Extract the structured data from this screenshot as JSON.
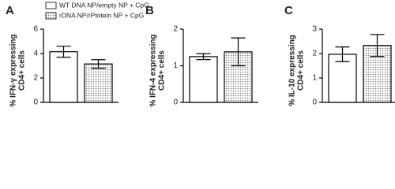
{
  "chart_data": [
    {
      "type": "bar",
      "panel": "A",
      "ylabel": [
        "% IFN-γ expressing",
        "CD4+ cells"
      ],
      "ylim": [
        0,
        6
      ],
      "yticks": [
        0,
        2,
        4,
        6
      ],
      "series": [
        {
          "name": "WT DNA NP/empty  NP + CpG",
          "color": "#ffffff",
          "values": [
            4.15
          ],
          "errors": [
            0.45
          ]
        },
        {
          "name": "rDNA NP/rPtotein NP + CpG",
          "color": "#d9d9d9",
          "values": [
            3.15
          ],
          "errors": [
            0.35
          ]
        }
      ]
    },
    {
      "type": "bar",
      "panel": "B",
      "ylabel": [
        "% IFN-4 expressing",
        "CD4+ cells"
      ],
      "ylim": [
        0,
        2
      ],
      "yticks": [
        0,
        1,
        2
      ],
      "series": [
        {
          "color": "#ffffff",
          "values": [
            1.25
          ],
          "errors": [
            0.08
          ]
        },
        {
          "color": "#d9d9d9",
          "values": [
            1.38
          ],
          "errors": [
            0.38
          ]
        }
      ]
    },
    {
      "type": "bar",
      "panel": "C",
      "ylabel": [
        "% IL-10 expressing",
        "CD4+ cells"
      ],
      "ylim": [
        0,
        3
      ],
      "yticks": [
        0,
        1,
        2,
        3
      ],
      "series": [
        {
          "color": "#ffffff",
          "values": [
            1.97
          ],
          "errors": [
            0.3
          ]
        },
        {
          "color": "#d9d9d9",
          "values": [
            2.33
          ],
          "errors": [
            0.45
          ]
        }
      ]
    }
  ]
}
